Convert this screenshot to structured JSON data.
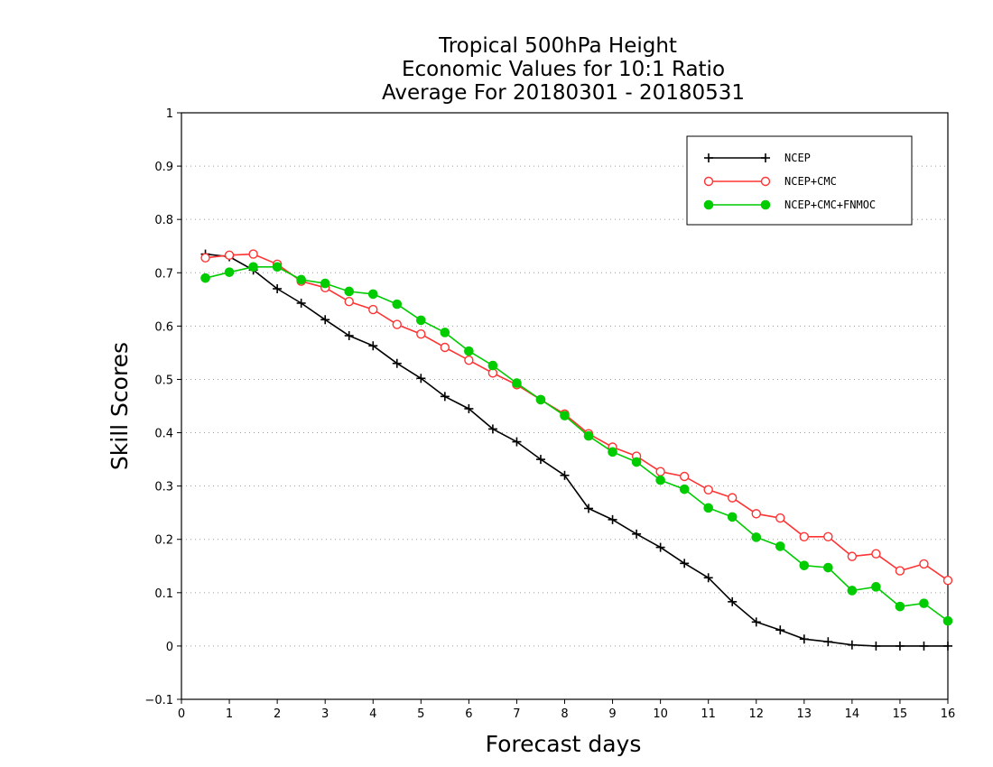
{
  "chart_data": {
    "type": "line",
    "title_lines": [
      "Tropical 500hPa Height",
      "Economic Values for 10:1 Ratio",
      "Average For 20180301 - 20180531"
    ],
    "xlabel": "Forecast days",
    "ylabel": "Skill Scores",
    "xlim": [
      0,
      16
    ],
    "ylim": [
      -0.1,
      1
    ],
    "x_ticks": [
      0,
      1,
      2,
      3,
      4,
      5,
      6,
      7,
      8,
      9,
      10,
      11,
      12,
      13,
      14,
      15,
      16
    ],
    "x_tick_labels": [
      "0",
      "1",
      "2",
      "3",
      "4",
      "5",
      "6",
      "7",
      "8",
      "9",
      "10",
      "11",
      "12",
      "13",
      "14",
      "15",
      "16"
    ],
    "y_ticks": [
      -0.1,
      0,
      0.1,
      0.2,
      0.3,
      0.4,
      0.5,
      0.6,
      0.7,
      0.8,
      0.9,
      1
    ],
    "y_tick_labels": [
      "−0.1",
      "0",
      "0.1",
      "0.2",
      "0.3",
      "0.4",
      "0.5",
      "0.6",
      "0.7",
      "0.8",
      "0.9",
      "1"
    ],
    "grid": "horizontal dotted",
    "legend_position": "top-right",
    "x": [
      0.5,
      1,
      1.5,
      2,
      2.5,
      3,
      3.5,
      4,
      4.5,
      5,
      5.5,
      6,
      6.5,
      7,
      7.5,
      8,
      8.5,
      9,
      9.5,
      10,
      10.5,
      11,
      11.5,
      12,
      12.5,
      13,
      13.5,
      14,
      14.5,
      15,
      15.5,
      16
    ],
    "series": [
      {
        "name": "NCEP",
        "color": "#000000",
        "marker": "plus",
        "values": [
          0.735,
          0.73,
          0.705,
          0.67,
          0.643,
          0.612,
          0.582,
          0.563,
          0.53,
          0.502,
          0.468,
          0.445,
          0.407,
          0.383,
          0.35,
          0.32,
          0.258,
          0.237,
          0.21,
          0.185,
          0.155,
          0.128,
          0.083,
          0.045,
          0.03,
          0.013,
          0.008,
          0.002,
          0.0,
          0.0,
          0.0,
          0.0
        ]
      },
      {
        "name": "NCEP+CMC",
        "color": "#ff3333",
        "marker": "open-circle",
        "values": [
          0.728,
          0.733,
          0.735,
          0.716,
          0.684,
          0.672,
          0.646,
          0.631,
          0.603,
          0.585,
          0.56,
          0.536,
          0.512,
          0.49,
          0.462,
          0.435,
          0.398,
          0.373,
          0.356,
          0.327,
          0.318,
          0.293,
          0.278,
          0.248,
          0.24,
          0.205,
          0.205,
          0.168,
          0.173,
          0.141,
          0.154,
          0.123
        ]
      },
      {
        "name": "NCEP+CMC+FNMOC",
        "color": "#00cc00",
        "marker": "filled-circle",
        "values": [
          0.69,
          0.701,
          0.711,
          0.711,
          0.687,
          0.68,
          0.665,
          0.66,
          0.641,
          0.611,
          0.588,
          0.553,
          0.526,
          0.493,
          0.462,
          0.432,
          0.394,
          0.364,
          0.345,
          0.311,
          0.294,
          0.259,
          0.242,
          0.204,
          0.187,
          0.151,
          0.147,
          0.104,
          0.111,
          0.074,
          0.08,
          0.047
        ]
      }
    ]
  }
}
